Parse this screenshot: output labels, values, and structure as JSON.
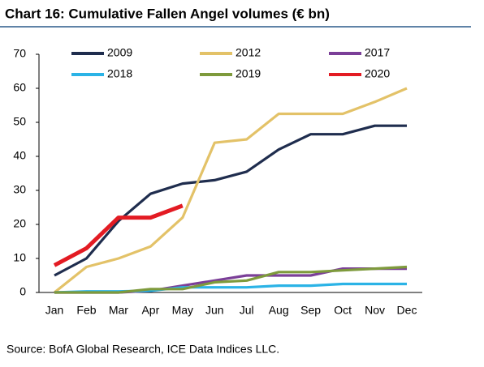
{
  "chart_data": {
    "type": "line",
    "title": "Chart 16: Cumulative Fallen Angel volumes (€ bn)",
    "source": "Source: BofA Global Research, ICE Data Indices LLC.",
    "categories": [
      "Jan",
      "Feb",
      "Mar",
      "Apr",
      "May",
      "Jun",
      "Jul",
      "Aug",
      "Sep",
      "Oct",
      "Nov",
      "Dec"
    ],
    "series": [
      {
        "name": "2009",
        "color": "#1f2d4e",
        "values": [
          5,
          10,
          21,
          29,
          32,
          33,
          35.5,
          42,
          46.5,
          46.5,
          49,
          49
        ]
      },
      {
        "name": "2012",
        "color": "#e3c268",
        "values": [
          0,
          7.5,
          10,
          13.5,
          22,
          44,
          45,
          52.5,
          52.5,
          52.5,
          56,
          60
        ]
      },
      {
        "name": "2017",
        "color": "#7b3f98",
        "values": [
          0,
          0,
          0,
          0.5,
          2,
          3.5,
          5,
          5,
          5,
          7,
          7,
          7
        ]
      },
      {
        "name": "2018",
        "color": "#2bb3e6",
        "values": [
          0,
          0.3,
          0.3,
          0.5,
          1.5,
          1.5,
          1.5,
          2,
          2,
          2.5,
          2.5,
          2.5
        ]
      },
      {
        "name": "2019",
        "color": "#7e9a3c",
        "values": [
          0,
          0,
          0,
          1,
          1,
          3,
          3.5,
          6,
          6,
          6.5,
          7,
          7.5
        ]
      },
      {
        "name": "2020",
        "color": "#e31b23",
        "values": [
          8,
          13,
          22,
          22,
          25.5,
          null,
          null,
          null,
          null,
          null,
          null,
          null
        ]
      }
    ],
    "ylim": [
      0,
      70
    ],
    "yticks": [
      0,
      10,
      20,
      30,
      40,
      50,
      60,
      70
    ],
    "grid": false
  }
}
